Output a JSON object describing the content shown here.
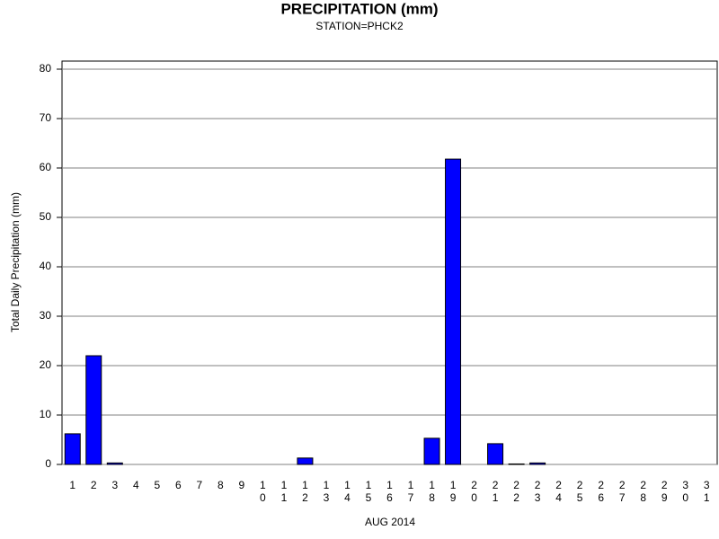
{
  "chart_data": {
    "type": "bar",
    "title": "PRECIPITATION (mm)",
    "subtitle": "STATION=PHCK2",
    "x_label": "AUG 2014",
    "y_label": "Total Daily Precipitation (mm)",
    "categories": [
      "1",
      "2",
      "3",
      "4",
      "5",
      "6",
      "7",
      "8",
      "9",
      "10",
      "11",
      "12",
      "13",
      "14",
      "15",
      "16",
      "17",
      "18",
      "19",
      "20",
      "21",
      "22",
      "23",
      "24",
      "25",
      "26",
      "27",
      "28",
      "29",
      "30",
      "31"
    ],
    "values": [
      6.2,
      22,
      0.3,
      0,
      0,
      0,
      0,
      0,
      0,
      0,
      0,
      1.3,
      0,
      0,
      0,
      0,
      0,
      5.3,
      61.8,
      0,
      4.2,
      0.1,
      0.3,
      0,
      0,
      0,
      0,
      0,
      0,
      0,
      0
    ],
    "color": "#0000ff",
    "ylim": [
      0,
      80
    ],
    "yticks": [
      0,
      10,
      20,
      30,
      40,
      50,
      60,
      70,
      80
    ],
    "grid": true
  }
}
